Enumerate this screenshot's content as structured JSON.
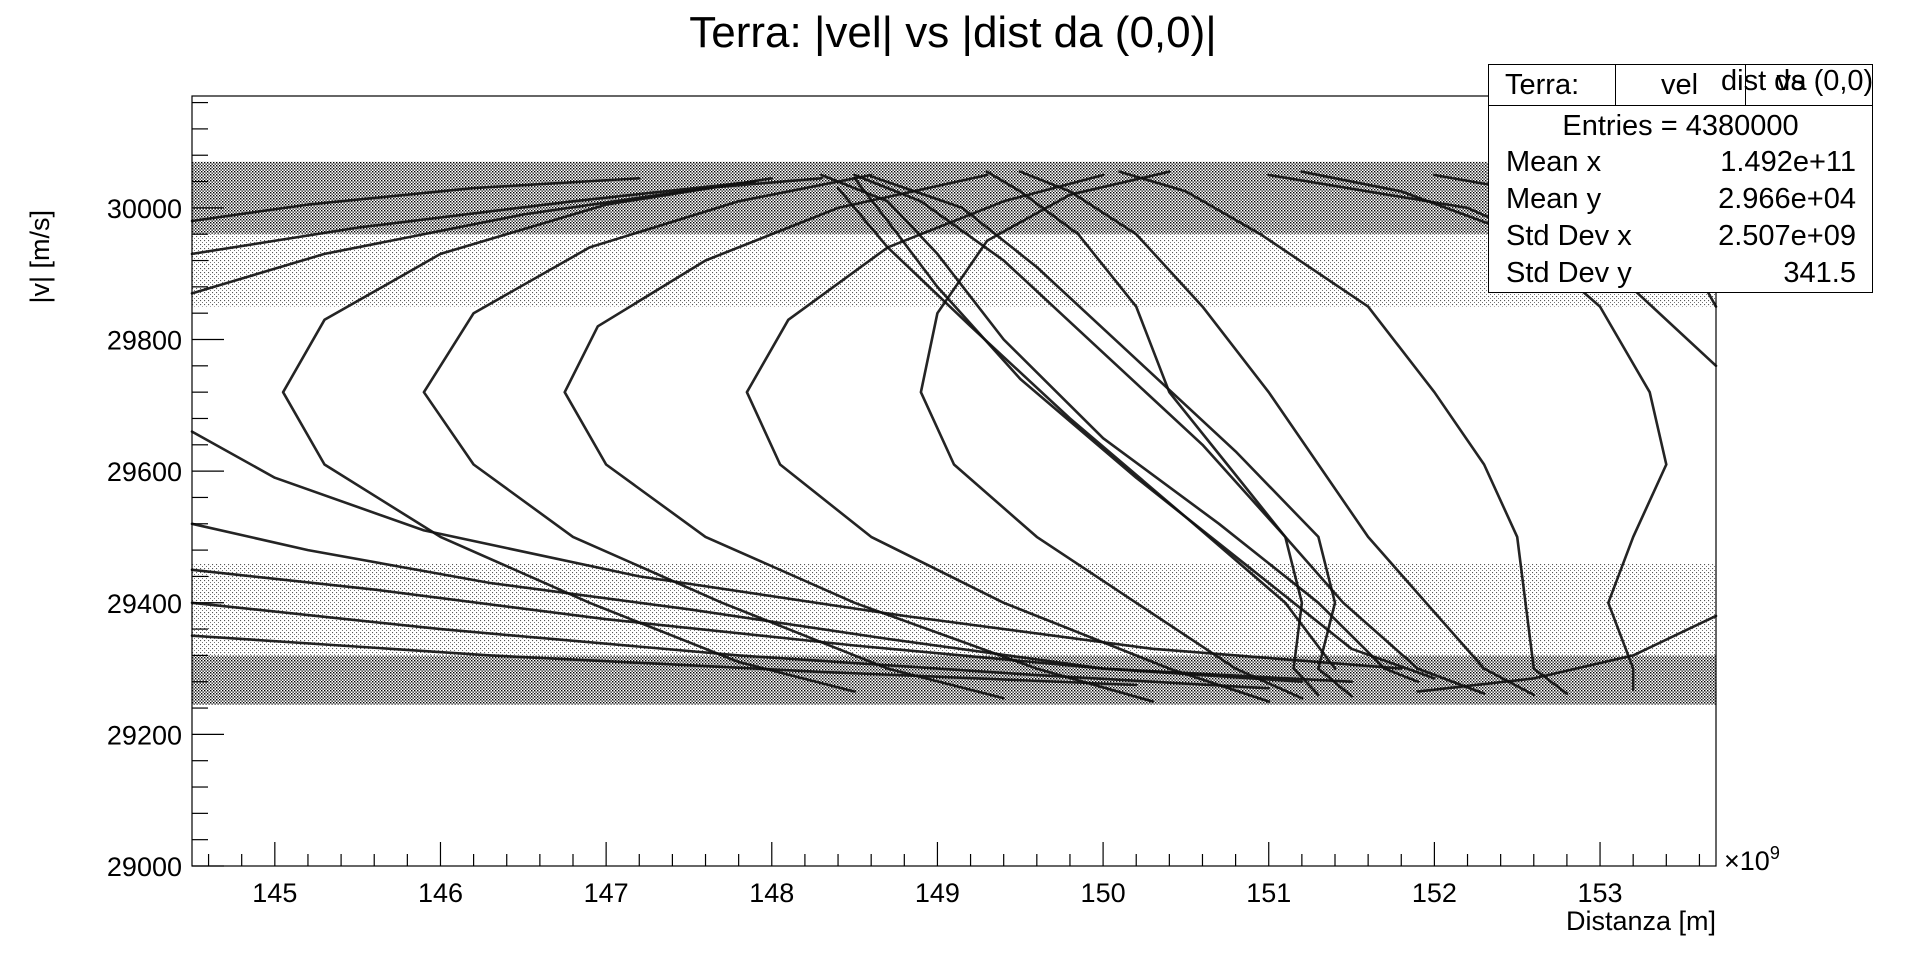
{
  "chart_data": {
    "type": "scatter",
    "title": "Terra: |vel| vs |dist da (0,0)|",
    "xlabel": "Distanza [m]",
    "ylabel": "|v| [m/s]",
    "x_exponent_label": "×10",
    "x_exponent_power": "9",
    "xlim": [
      144.5,
      153.7
    ],
    "ylim": [
      29000,
      30170
    ],
    "x_ticks": [
      "145",
      "146",
      "147",
      "148",
      "149",
      "150",
      "151",
      "152",
      "153"
    ],
    "y_ticks": [
      "29000",
      "29200",
      "29400",
      "29600",
      "29800",
      "30000"
    ],
    "grid": false,
    "bands": [
      {
        "y_from": 29245,
        "y_to": 29320,
        "density": "very high"
      },
      {
        "y_from": 29320,
        "y_to": 29460,
        "density": "medium"
      },
      {
        "y_from": 29850,
        "y_to": 29960,
        "density": "medium"
      },
      {
        "y_from": 29960,
        "y_to": 30070,
        "density": "very high"
      }
    ],
    "series": [
      {
        "points": [
          [
            150.3,
            29250
          ],
          [
            149.6,
            29300
          ],
          [
            148.5,
            29400
          ],
          [
            147.6,
            29500
          ],
          [
            147.0,
            29610
          ],
          [
            146.75,
            29720
          ],
          [
            146.95,
            29820
          ],
          [
            147.6,
            29920
          ],
          [
            148.4,
            30000
          ],
          [
            149.3,
            30050
          ]
        ]
      },
      {
        "points": [
          [
            149.4,
            29255
          ],
          [
            148.7,
            29300
          ],
          [
            147.7,
            29400
          ],
          [
            146.8,
            29500
          ],
          [
            146.2,
            29610
          ],
          [
            145.9,
            29720
          ],
          [
            146.2,
            29840
          ],
          [
            146.9,
            29940
          ],
          [
            147.8,
            30010
          ],
          [
            148.6,
            30050
          ]
        ]
      },
      {
        "points": [
          [
            148.5,
            29265
          ],
          [
            147.8,
            29310
          ],
          [
            146.9,
            29400
          ],
          [
            146.0,
            29500
          ],
          [
            145.3,
            29610
          ],
          [
            145.05,
            29720
          ],
          [
            145.3,
            29830
          ],
          [
            146.0,
            29930
          ],
          [
            147.0,
            30005
          ],
          [
            148.0,
            30045
          ]
        ]
      },
      {
        "points": [
          [
            151.0,
            29250
          ],
          [
            150.4,
            29300
          ],
          [
            149.4,
            29400
          ],
          [
            148.6,
            29500
          ],
          [
            148.05,
            29610
          ],
          [
            147.85,
            29720
          ],
          [
            148.1,
            29830
          ],
          [
            148.7,
            29940
          ],
          [
            149.4,
            30010
          ],
          [
            150.0,
            30050
          ]
        ]
      },
      {
        "points": [
          [
            151.2,
            29255
          ],
          [
            150.8,
            29300
          ],
          [
            150.2,
            29400
          ],
          [
            149.6,
            29500
          ],
          [
            149.1,
            29610
          ],
          [
            148.9,
            29720
          ],
          [
            149.0,
            29840
          ],
          [
            149.3,
            29950
          ],
          [
            149.8,
            30020
          ],
          [
            150.4,
            30055
          ]
        ]
      },
      {
        "points": [
          [
            152.3,
            29262
          ],
          [
            151.9,
            29300
          ],
          [
            151.45,
            29400
          ],
          [
            151.1,
            29500
          ],
          [
            150.75,
            29610
          ],
          [
            150.4,
            29720
          ],
          [
            150.2,
            29850
          ],
          [
            149.85,
            29960
          ],
          [
            149.5,
            30025
          ],
          [
            149.3,
            30055
          ]
        ]
      },
      {
        "points": [
          [
            152.6,
            29260
          ],
          [
            152.3,
            29300
          ],
          [
            151.95,
            29400
          ],
          [
            151.6,
            29500
          ],
          [
            151.3,
            29610
          ],
          [
            151.0,
            29720
          ],
          [
            150.6,
            29850
          ],
          [
            150.2,
            29960
          ],
          [
            149.8,
            30025
          ],
          [
            149.5,
            30055
          ]
        ]
      },
      {
        "points": [
          [
            152.8,
            29262
          ],
          [
            152.6,
            29300
          ],
          [
            152.55,
            29400
          ],
          [
            152.5,
            29500
          ],
          [
            152.3,
            29610
          ],
          [
            152.0,
            29720
          ],
          [
            151.6,
            29850
          ],
          [
            150.95,
            29960
          ],
          [
            150.5,
            30025
          ],
          [
            150.1,
            30055
          ]
        ]
      },
      {
        "points": [
          [
            153.2,
            29268
          ],
          [
            153.2,
            29300
          ],
          [
            153.05,
            29400
          ],
          [
            153.2,
            29500
          ],
          [
            153.4,
            29610
          ],
          [
            153.3,
            29720
          ],
          [
            153.0,
            29850
          ],
          [
            152.5,
            29960
          ],
          [
            151.8,
            30025
          ],
          [
            151.2,
            30055
          ]
        ]
      },
      {
        "points": [
          [
            151.9,
            29280
          ],
          [
            151.7,
            29300
          ],
          [
            151.3,
            29400
          ],
          [
            150.7,
            29520
          ],
          [
            150.0,
            29650
          ],
          [
            149.4,
            29800
          ],
          [
            149.0,
            29930
          ],
          [
            148.7,
            30010
          ],
          [
            148.3,
            30050
          ]
        ]
      },
      {
        "points": [
          [
            152.0,
            29285
          ],
          [
            151.5,
            29330
          ],
          [
            150.9,
            29450
          ],
          [
            150.2,
            29590
          ],
          [
            149.5,
            29740
          ],
          [
            149.0,
            29880
          ],
          [
            148.7,
            29980
          ],
          [
            148.5,
            30045
          ]
        ]
      },
      {
        "points": [
          [
            151.3,
            29260
          ],
          [
            151.15,
            29300
          ],
          [
            151.2,
            29400
          ],
          [
            151.1,
            29500
          ],
          [
            150.6,
            29640
          ],
          [
            150.0,
            29780
          ],
          [
            149.4,
            29920
          ],
          [
            148.9,
            30010
          ],
          [
            148.5,
            30050
          ]
        ]
      },
      {
        "points": [
          [
            151.5,
            29258
          ],
          [
            151.3,
            29300
          ],
          [
            151.4,
            29400
          ],
          [
            151.3,
            29500
          ],
          [
            150.8,
            29630
          ],
          [
            150.2,
            29770
          ],
          [
            149.6,
            29910
          ],
          [
            149.15,
            30000
          ],
          [
            148.6,
            30048
          ]
        ]
      },
      {
        "points": [
          [
            151.4,
            29300
          ],
          [
            151.1,
            29400
          ],
          [
            150.5,
            29530
          ],
          [
            149.8,
            29680
          ],
          [
            149.2,
            29820
          ],
          [
            148.7,
            29940
          ],
          [
            148.4,
            30030
          ]
        ]
      },
      {
        "points": [
          [
            144.5,
            29520
          ],
          [
            145.2,
            29480
          ],
          [
            146.3,
            29430
          ],
          [
            147.5,
            29390
          ],
          [
            148.7,
            29345
          ],
          [
            150.0,
            29300
          ],
          [
            151.5,
            29280
          ]
        ]
      },
      {
        "points": [
          [
            144.5,
            29660
          ],
          [
            145.0,
            29590
          ],
          [
            145.9,
            29510
          ],
          [
            147.2,
            29440
          ],
          [
            148.8,
            29380
          ],
          [
            150.3,
            29330
          ],
          [
            151.8,
            29300
          ]
        ]
      },
      {
        "points": [
          [
            144.5,
            29450
          ],
          [
            145.6,
            29420
          ],
          [
            147.0,
            29375
          ],
          [
            148.5,
            29335
          ],
          [
            150.0,
            29300
          ],
          [
            151.2,
            29280
          ]
        ]
      },
      {
        "points": [
          [
            144.5,
            29400
          ],
          [
            146.0,
            29360
          ],
          [
            147.8,
            29320
          ],
          [
            149.6,
            29290
          ],
          [
            151.0,
            29270
          ]
        ]
      },
      {
        "points": [
          [
            144.5,
            29350
          ],
          [
            146.3,
            29320
          ],
          [
            148.3,
            29295
          ],
          [
            150.2,
            29275
          ]
        ]
      },
      {
        "points": [
          [
            144.5,
            29980
          ],
          [
            145.2,
            30005
          ],
          [
            146.2,
            30030
          ],
          [
            147.2,
            30045
          ]
        ]
      },
      {
        "points": [
          [
            144.5,
            29870
          ],
          [
            145.3,
            29930
          ],
          [
            146.5,
            29990
          ],
          [
            147.6,
            30030
          ],
          [
            148.3,
            30045
          ]
        ]
      },
      {
        "points": [
          [
            144.5,
            29930
          ],
          [
            145.5,
            29970
          ],
          [
            146.8,
            30010
          ],
          [
            147.9,
            30040
          ]
        ]
      },
      {
        "points": [
          [
            153.7,
            29760
          ],
          [
            153.1,
            29900
          ],
          [
            152.2,
            30000
          ],
          [
            151.0,
            30050
          ]
        ]
      },
      {
        "points": [
          [
            153.7,
            29380
          ],
          [
            153.2,
            29320
          ],
          [
            152.6,
            29285
          ],
          [
            151.9,
            29265
          ]
        ]
      },
      {
        "points": [
          [
            153.7,
            29850
          ],
          [
            153.5,
            29940
          ],
          [
            152.9,
            30010
          ],
          [
            152.0,
            30050
          ]
        ]
      }
    ]
  },
  "stats": {
    "header_name": "Terra:",
    "header_vel": "vel",
    "header_dist": "dist da",
    "header_vs": "vs",
    "header_origin": "(0,0)",
    "entries_label": "Entries = ",
    "entries_value": "4380000",
    "rows": [
      {
        "label": "Mean x",
        "value": "1.492e+11"
      },
      {
        "label": "Mean y",
        "value": "2.966e+04"
      },
      {
        "label": "Std Dev x",
        "value": "2.507e+09"
      },
      {
        "label": "Std Dev y",
        "value": "341.5"
      }
    ]
  }
}
